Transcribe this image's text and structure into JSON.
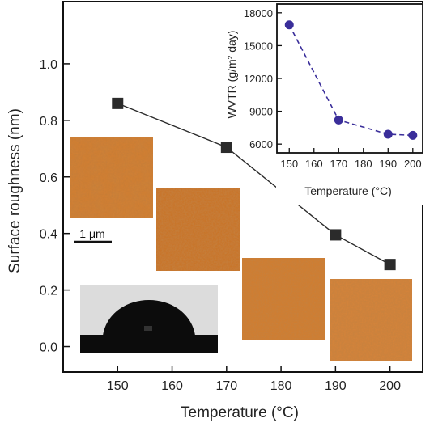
{
  "chart_data": [
    {
      "type": "line",
      "xlabel": "Temperature (°C)",
      "ylabel": "Surface roughness (nm)",
      "x": [
        150,
        170,
        190,
        200
      ],
      "series": [
        {
          "values": [
            0.86,
            0.705,
            0.395,
            0.29
          ],
          "color": "#2b2b2b",
          "marker": "square"
        }
      ],
      "xlim": [
        140,
        206
      ],
      "ylim": [
        -0.09,
        1.22
      ],
      "xticks": [
        "150",
        "160",
        "170",
        "180",
        "190",
        "200"
      ],
      "yticks": [
        "0.0",
        "0.2",
        "0.4",
        "0.6",
        "0.8",
        "1.0"
      ],
      "grid": false
    },
    {
      "type": "line",
      "xlabel": "Temperature (°C)",
      "ylabel": "WVTR (g/m² day)",
      "x": [
        150,
        170,
        190,
        200
      ],
      "series": [
        {
          "values": [
            16900,
            8200,
            6900,
            6800
          ],
          "color": "#3a2e9a",
          "marker": "circle",
          "line_style": "dashed"
        }
      ],
      "xlim": [
        145,
        204
      ],
      "ylim": [
        5200,
        18800
      ],
      "xticks": [
        "150",
        "160",
        "170",
        "180",
        "190",
        "200"
      ],
      "yticks": [
        "6000",
        "9000",
        "12000",
        "15000",
        "18000"
      ],
      "grid": false
    }
  ],
  "scale_bar": {
    "label": "1 μm"
  },
  "afm_images": [
    {
      "temperature": 150,
      "texture": "AFM topography"
    },
    {
      "temperature": 170,
      "texture": "AFM topography"
    },
    {
      "temperature": 190,
      "texture": "AFM topography"
    },
    {
      "temperature": 200,
      "texture": "AFM topography"
    }
  ],
  "colors": {
    "afm": "#c8752a",
    "main_line": "#2b2b2b",
    "inset_line": "#3a2e9a"
  }
}
